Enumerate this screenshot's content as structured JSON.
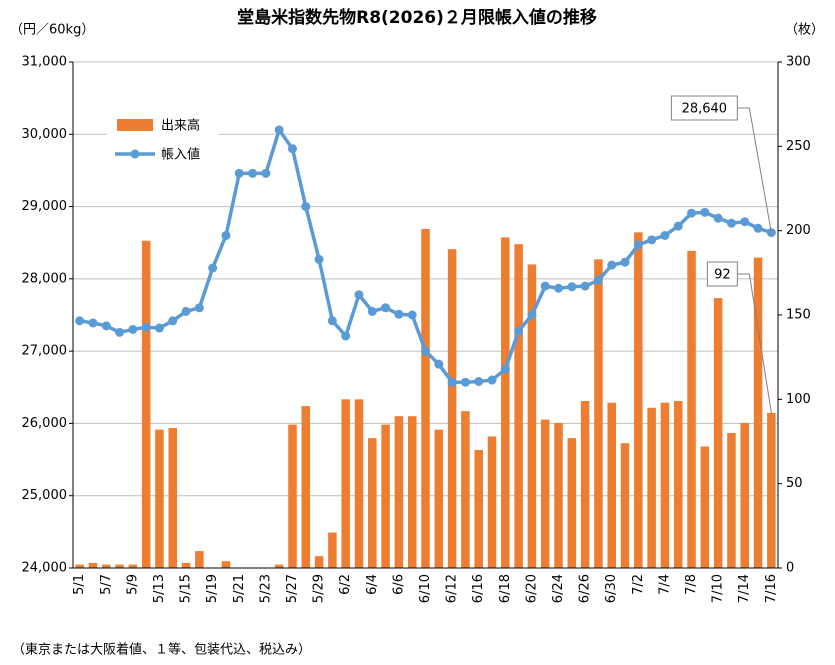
{
  "chart_data": {
    "type": "bar_line",
    "title": "堂島米指数先物R8(2026)２月限帳入値の推移",
    "y_label": "（円／60kg）",
    "y2_label": "（枚）",
    "footnote": "（東京または大阪着値、１等、包装代込、税込み）",
    "categories": [
      "5/1",
      null,
      "5/7",
      null,
      "5/9",
      null,
      "5/13",
      null,
      "5/15",
      null,
      "5/19",
      null,
      "5/21",
      null,
      "5/23",
      null,
      "5/27",
      null,
      "5/29",
      null,
      "6/2",
      null,
      "6/4",
      null,
      "6/6",
      null,
      "6/10",
      null,
      "6/12",
      null,
      "6/16",
      null,
      "6/18",
      null,
      "6/20",
      null,
      "6/24",
      null,
      "6/26",
      null,
      "6/30",
      null,
      "7/2",
      null,
      "7/4",
      null,
      "7/8",
      null,
      "7/10",
      null,
      "7/14",
      null,
      "7/16"
    ],
    "series": [
      {
        "name": "出来高",
        "type": "bar",
        "axis": "y2",
        "color": "#ed7d31",
        "values": [
          2,
          3,
          2,
          2,
          2,
          194,
          82,
          83,
          3,
          10,
          0,
          4,
          0,
          0,
          0,
          2,
          85,
          96,
          7,
          21,
          100,
          100,
          77,
          85,
          90,
          90,
          201,
          82,
          189,
          93,
          70,
          78,
          196,
          192,
          180,
          88,
          86,
          77,
          99,
          183,
          98,
          74,
          199,
          95,
          98,
          99,
          188,
          72,
          160,
          80,
          86,
          184,
          92
        ],
        "value_labels": [
          null,
          null,
          null,
          null,
          null,
          null,
          null,
          null,
          null,
          null,
          null,
          null,
          null,
          null,
          null,
          null,
          null,
          null,
          null,
          null,
          null,
          null,
          null,
          null,
          null,
          null,
          null,
          null,
          null,
          null,
          null,
          null,
          null,
          null,
          null,
          null,
          null,
          null,
          null,
          null,
          null,
          null,
          null,
          null,
          null,
          null,
          null,
          null,
          null,
          null,
          null,
          null,
          "92"
        ]
      },
      {
        "name": "帳入値",
        "type": "line",
        "axis": "y",
        "color": "#5b9bd5",
        "values": [
          27420,
          27390,
          27350,
          27260,
          27300,
          27330,
          27320,
          27420,
          27550,
          27600,
          28150,
          28600,
          29460,
          29460,
          29460,
          30060,
          29800,
          29000,
          28270,
          27420,
          27210,
          27780,
          27550,
          27600,
          27510,
          27500,
          27000,
          26820,
          26570,
          26570,
          26580,
          26600,
          26750,
          27280,
          27500,
          27900,
          27870,
          27890,
          27900,
          27980,
          28190,
          28230,
          28470,
          28540,
          28600,
          28730,
          28910,
          28920,
          28840,
          28770,
          28790,
          28700,
          28640
        ],
        "value_labels": [
          null,
          null,
          null,
          null,
          null,
          null,
          null,
          null,
          null,
          null,
          null,
          null,
          null,
          null,
          null,
          null,
          null,
          null,
          null,
          null,
          null,
          null,
          null,
          null,
          null,
          null,
          null,
          null,
          null,
          null,
          null,
          null,
          null,
          null,
          null,
          null,
          null,
          null,
          null,
          null,
          null,
          null,
          null,
          null,
          null,
          null,
          null,
          null,
          null,
          null,
          null,
          null,
          "28,640"
        ]
      }
    ],
    "ylim": [
      24000,
      31000
    ],
    "yticks": [
      {
        "value": 24000,
        "label": "24,000"
      },
      {
        "value": 25000,
        "label": "25,000"
      },
      {
        "value": 26000,
        "label": "26,000"
      },
      {
        "value": 27000,
        "label": "27,000"
      },
      {
        "value": 28000,
        "label": "28,000"
      },
      {
        "value": 29000,
        "label": "29,000"
      },
      {
        "value": 30000,
        "label": "30,000"
      },
      {
        "value": 31000,
        "label": "31,000"
      }
    ],
    "y2lim": [
      0,
      300
    ],
    "y2ticks": [
      0,
      50,
      100,
      150,
      200,
      250,
      300
    ],
    "grid": true,
    "legend": "upper left"
  }
}
